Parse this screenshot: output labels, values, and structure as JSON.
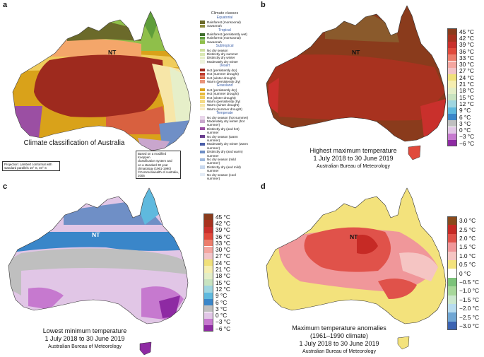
{
  "panel_labels": [
    "a",
    "b",
    "c",
    "d"
  ],
  "nt_label": "NT",
  "panel_a": {
    "title": "Climate classification of Australia",
    "legend_heading": "Climate classes",
    "groups": [
      {
        "name": "Equatorial",
        "items": [
          {
            "label": "Rainforest (monsoonal)",
            "color": "#6b6a2a"
          },
          {
            "label": "Savannah",
            "color": "#8c8a3c"
          }
        ]
      },
      {
        "name": "Tropical",
        "items": [
          {
            "label": "Rainforest (persistently wet)",
            "color": "#3f6e2e"
          },
          {
            "label": "Rainforest (monsoonal)",
            "color": "#5f9d3a"
          },
          {
            "label": "Savannah",
            "color": "#8fbf4a"
          }
        ]
      },
      {
        "name": "Subtropical",
        "items": [
          {
            "label": "No dry season",
            "color": "#cfe0a0"
          },
          {
            "label": "Distinctly dry summer",
            "color": "#d9e8b4"
          },
          {
            "label": "Distinctly dry winter",
            "color": "#e6efc9"
          },
          {
            "label": "Moderately dry winter",
            "color": "#eef3dc"
          }
        ]
      },
      {
        "name": "Desert",
        "items": [
          {
            "label": "Hot (persistently dry)",
            "color": "#9e2a1e"
          },
          {
            "label": "Hot (summer drought)",
            "color": "#c0392b"
          },
          {
            "label": "Hot (winter drought)",
            "color": "#d8603f"
          },
          {
            "label": "Warm (persistently dry)",
            "color": "#e8947a"
          }
        ]
      },
      {
        "name": "Grassland",
        "items": [
          {
            "label": "Hot (persistently dry)",
            "color": "#d9a21a"
          },
          {
            "label": "Hot (summer drought)",
            "color": "#e7b93a"
          },
          {
            "label": "Hot (winter drought)",
            "color": "#f0cc5c"
          },
          {
            "label": "Warm (persistently dry)",
            "color": "#f4da86"
          },
          {
            "label": "Warm (winter drought)",
            "color": "#f7e6a8"
          },
          {
            "label": "Warm (summer drought)",
            "color": "#faeec6"
          }
        ]
      },
      {
        "name": "Temperate",
        "items": [
          {
            "label": "No dry season (hot summer)",
            "color": "#e9d6ea"
          },
          {
            "label": "Moderately dry winter (hot summer)",
            "color": "#c9a6cd"
          },
          {
            "label": "Distinctly dry (and hot) summer",
            "color": "#9b4fa3"
          },
          {
            "label": "No dry season (warm summer)",
            "color": "#6a3d8f"
          },
          {
            "label": "Moderately dry winter (warm summer)",
            "color": "#4a5ea8"
          },
          {
            "label": "Distinctly dry (and warm) summer",
            "color": "#6f8fc6"
          },
          {
            "label": "No dry season (mild summer)",
            "color": "#9fb9dd"
          },
          {
            "label": "Distinctly dry (and mild) summer",
            "color": "#c8d8ee"
          },
          {
            "label": "No dry season (cool summer)",
            "color": "#e3ebf6"
          }
        ]
      }
    ],
    "source_note": [
      "Based on a modified Koeppen",
      "classification system and",
      "on a standard 30 year",
      "climatology (1961-1990)",
      "©Commonwealth of Australia, 2005"
    ],
    "projection_note": [
      "Projection: Lambert conformal with",
      "standard parallels 10° S, 40° S"
    ]
  },
  "panel_b": {
    "title_lines": [
      "Highest maximum temperature",
      "1 July 2018 to 30 June 2019"
    ],
    "source": "Australian Bureau of Meteorology"
  },
  "panel_c": {
    "title_lines": [
      "Lowest minimum temperature",
      "1 July 2018 to 30 June 2019"
    ],
    "source": "Australian Bureau of Meteorology"
  },
  "panel_d": {
    "title_lines": [
      "Maximum temperature anomalies",
      "(1961–1990 climate)",
      "1 July 2018 to 30 June 2019"
    ],
    "source": "Australian Bureau of Meteorology"
  },
  "temp_scale": {
    "labels": [
      "45 °C",
      "42 °C",
      "39 °C",
      "36 °C",
      "33 °C",
      "30 °C",
      "27 °C",
      "24 °C",
      "21 °C",
      "18 °C",
      "15 °C",
      "12 °C",
      "9 °C",
      "6 °C",
      "3 °C",
      "0 °C",
      "−3 °C",
      "−6 °C"
    ],
    "colors": [
      "#8a3b1c",
      "#a8321f",
      "#c9302c",
      "#e04a3c",
      "#ec7d6c",
      "#f4a6a0",
      "#f2c4c8",
      "#f0e07a",
      "#f5eeb0",
      "#e3eec7",
      "#c8e3c0",
      "#9fd6e0",
      "#5fb9de",
      "#3a86c9",
      "#bfbfbf",
      "#e1c6e6",
      "#c679cf",
      "#8e2aa3"
    ]
  },
  "anomaly_scale": {
    "labels": [
      "3.0 °C",
      "2.5 °C",
      "2.0 °C",
      "1.5 °C",
      "1.0 °C",
      "0.5 °C",
      "0 °C",
      "−0.5 °C",
      "−1.0 °C",
      "−1.5 °C",
      "−2.0 °C",
      "−2.5 °C",
      "−3.0 °C"
    ],
    "colors": [
      "#8a4a1c",
      "#c62a25",
      "#e0524a",
      "#f0979a",
      "#f5c5c3",
      "#f3e27c",
      "#ffffff",
      "#7cc37a",
      "#a7d89a",
      "#cbe8ce",
      "#b7dcef",
      "#6fa6d4",
      "#3b63b2"
    ]
  }
}
